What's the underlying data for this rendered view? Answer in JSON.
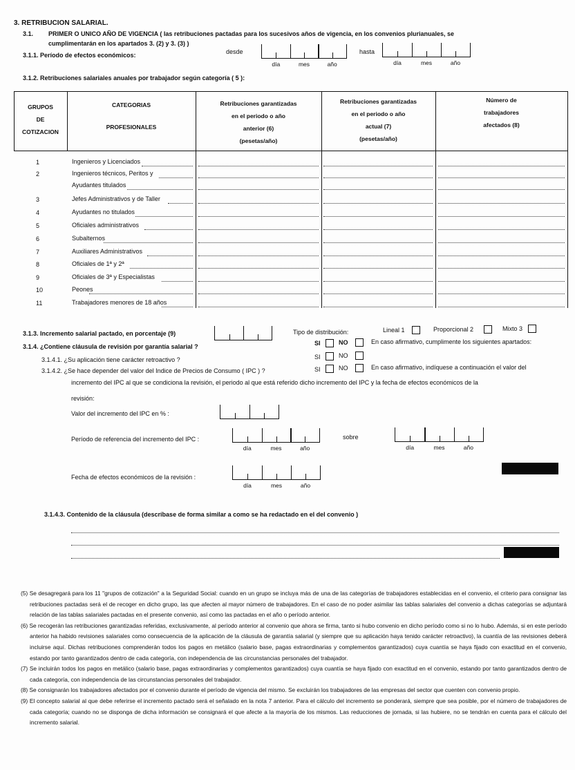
{
  "section": {
    "title": "3. RETRIBUCION SALARIAL.",
    "s31_num": "3.1.",
    "s31_line1": "PRIMER O UNICO AÑO DE VIGENCIA ( las retribuciones pactadas para los sucesivos años de vigencia, en los convenios plurianuales, se",
    "s31_line2": "cumplimentarán en los apartados 3. (2) y 3. (3) )",
    "s311": "3.1.1.  Período de efectos económicos:",
    "desde": "desde",
    "hasta": "hasta",
    "s312": "3.1.2.  Retribuciones salariales anuales por trabajador según categoría ( 5 ):"
  },
  "date_labels": {
    "dia": "día",
    "mes": "mes",
    "ano": "año"
  },
  "table": {
    "headers": [
      [
        "GRUPOS",
        "DE",
        "COTIZACION"
      ],
      [
        "CATEGORIAS",
        "",
        "PROFESIONALES"
      ],
      [
        "Retribuciones garantizadas",
        "en el periodo o año",
        "anterior (6)",
        "(pesetas/año)"
      ],
      [
        "Retribuciones garantizadas",
        "en el periodo o año",
        "actual (7)",
        "(pesetas/año)"
      ],
      [
        "Número de",
        "trabajadores",
        "afectados (8)"
      ]
    ],
    "rows": [
      {
        "group": "1",
        "category": "Ingenieros y Licenciados"
      },
      {
        "group": "2",
        "category": "Ingenieros técnicos, Peritos y",
        "category2": "Ayudantes titulados"
      },
      {
        "group": "3",
        "category": "Jefes Administrativos y de Taller"
      },
      {
        "group": "4",
        "category": "Ayudantes no titulados"
      },
      {
        "group": "5",
        "category": "Oficiales administrativos"
      },
      {
        "group": "6",
        "category": "Subalternos"
      },
      {
        "group": "7",
        "category": "Auxiliares Administrativos"
      },
      {
        "group": "8",
        "category": "Oficiales de 1ª y 2ª"
      },
      {
        "group": "9",
        "category": "Oficiales de 3ª y Especialistas"
      },
      {
        "group": "10",
        "category": "Peones"
      },
      {
        "group": "11",
        "category": "Trabajadores menores de 18 años"
      }
    ]
  },
  "s313": {
    "label": "3.1.3. Incremento salarial pactado, en porcentaje (9)",
    "tipo": "Tipo de distribución:",
    "lineal": "Lineal 1",
    "proporcional": "Proporcional 2",
    "mixto": "Mixto 3"
  },
  "s314": {
    "label": "3.1.4. ¿Contiene cláusula de revisión por garantía salarial ?",
    "si": "SI",
    "no": "NO",
    "note": "En caso afirmativo, cumplimente los siguientes apartados:",
    "s3141": "3.1.4.1. ¿Su aplicación tiene carácter retroactivo ?",
    "s3142": "3.1.4.2. ¿Se hace depender del valor del Indice de Precios de Consumo ( IPC ) ?",
    "s3142_note": "En caso afirmativo, indíquese a continuación el valor del",
    "s3142_line2": "incremento del IPC al que se condiciona la revisión, el periodo al que está referido dicho incremento del IPC y la fecha de efectos económicos de la",
    "s3142_line3": "revisión:",
    "valor_ipc": "Valor del incremento del IPC en % :",
    "periodo_ref": "Período de referencia del incremento del IPC :",
    "sobre": "sobre",
    "fecha_efectos": "Fecha de efectos económicos de la revisión :",
    "s3143": "3.1.4.3. Contenido de la cláusula (descríbase de forma similar a como se ha redactado en el del convenio )"
  },
  "footnotes": [
    "(5) Se desagregará para los 11 \"grupos de cotización\" a la Seguridad Social: cuando en un grupo se incluya más de una de las categorías de trabajadores establecidas en el convenio, el criterio para consignar las retribuciones pactadas será el de recoger en dicho grupo, las que afecten al mayor número de trabajadores. En el caso de no poder asimilar las tablas salariales del convenio a dichas categorías se adjuntará relación de las tablas salariales pactadas en el presente convenio, así como las pactadas en el año o período anterior.",
    "(6) Se recogerán las retribuciones garantizadas referidas, exclusivamente, al período anterior al convenio que ahora se firma, tanto si hubo convenio en dicho período como si no lo hubo. Además, si en este período anterior ha habido revisiones salariales como consecuencia de la aplicación de la cláusula de garantía salarial (y siempre que su aplicación haya tenido carácter retroactivo), la cuantía de las revisiones deberá incluirse aquí. Dichas retribuciones comprenderán todos los pagos en metálico (salario base, pagas extraordinarias y complementos garantizados) cuya cuantía se haya fijado con exactitud en el convenio, estando por tanto garantizados dentro de cada categoría, con independencia de las circunstancias personales del trabajador.",
    "(7) Se incluirán todos los pagos en metálico (salario base, pagas extraordinarias y complementos garantizados) cuya cuantía se haya fijado con exactitud en el convenio, estando por tanto garantizados dentro de cada categoría, con independencia de las circunstancias personales del trabajador.",
    "(8) Se consignarán los trabajadores afectados por el convenio durante el período de vigencia del mismo. Se excluirán los trabajadores de las empresas del sector que cuenten con convenio propio.",
    "(9) El concepto salarial al que debe referirse el incremento pactado será el señalado en la nota 7 anterior. Para el cálculo del incremento se ponderará, siempre que sea posible, por el número de trabajadores de cada categoría; cuando no se disponga de dicha información se consignará el que afecte a la mayoría de los mismos. Las reducciones de jornada, si las hubiere, no se tendrán en cuenta para el cálculo del incremento salarial."
  ]
}
